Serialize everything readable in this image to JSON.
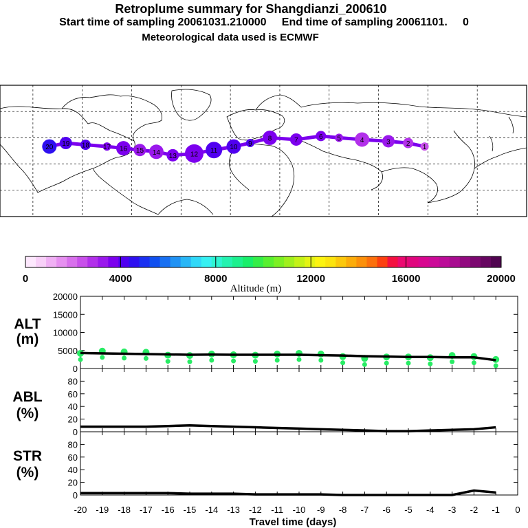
{
  "header": {
    "title": "Retroplume summary for Shangdianzi_200610",
    "subtitle": "Start time of sampling 20061031.210000     End time of sampling 20061101.     0",
    "met_line": "Meteorological data used is ECMWF"
  },
  "colorbar": {
    "title": "Altitude (m)",
    "ticks": [
      "0",
      "4000",
      "8000",
      "12000",
      "16000",
      "20000"
    ],
    "colors": [
      "#fde8fd",
      "#f8d0f8",
      "#f0b0f4",
      "#e690f0",
      "#d870ec",
      "#c850ea",
      "#b230ea",
      "#9a18ec",
      "#7c00ee",
      "#5000f0",
      "#2e10f0",
      "#1a30f2",
      "#1050f0",
      "#1870f2",
      "#2092f4",
      "#28b6f6",
      "#30d8f8",
      "#36f0f2",
      "#2ef4d2",
      "#24f2b0",
      "#1cf08e",
      "#18ee6a",
      "#34ee48",
      "#58f030",
      "#7cf024",
      "#a0f01e",
      "#c4f218",
      "#e4f414",
      "#fcf410",
      "#fce40e",
      "#fcc80c",
      "#fcac0a",
      "#fc900a",
      "#fc700c",
      "#fc4010",
      "#f41040",
      "#ec0870",
      "#e0067e",
      "#d80690",
      "#cc0a98",
      "#bc0c98",
      "#a80c90",
      "#920a80",
      "#7c0870",
      "#660660",
      "#500450"
    ]
  },
  "map": {
    "plume_color": "#7c00ee",
    "points": [
      {
        "label": "1",
        "lon": 118,
        "lat": 40,
        "alt": 2500
      },
      {
        "label": "2",
        "lon": 108,
        "lat": 42,
        "alt": 2800
      },
      {
        "label": "3",
        "lon": 96,
        "lat": 43,
        "alt": 3200
      },
      {
        "label": "4",
        "lon": 80,
        "lat": 44,
        "alt": 3000
      },
      {
        "label": "5",
        "lon": 66,
        "lat": 45,
        "alt": 3300
      },
      {
        "label": "6",
        "lon": 55,
        "lat": 46,
        "alt": 3500
      },
      {
        "label": "7",
        "lon": 40,
        "lat": 44,
        "alt": 3600
      },
      {
        "label": "8",
        "lon": 24,
        "lat": 45,
        "alt": 3800
      },
      {
        "label": "9",
        "lon": 12,
        "lat": 42,
        "alt": 4000
      },
      {
        "label": "10",
        "lon": 2,
        "lat": 40,
        "alt": 4200
      },
      {
        "label": "11",
        "lon": -10,
        "lat": 38,
        "alt": 4100
      },
      {
        "label": "12",
        "lon": -22,
        "lat": 36,
        "alt": 3900
      },
      {
        "label": "13",
        "lon": -35,
        "lat": 35,
        "alt": 3700
      },
      {
        "label": "14",
        "lon": -45,
        "lat": 37,
        "alt": 3400
      },
      {
        "label": "15",
        "lon": -55,
        "lat": 38,
        "alt": 3300
      },
      {
        "label": "16",
        "lon": -65,
        "lat": 39,
        "alt": 3500
      },
      {
        "label": "17",
        "lon": -75,
        "lat": 40,
        "alt": 3800
      },
      {
        "label": "18",
        "lon": -88,
        "lat": 41,
        "alt": 4000
      },
      {
        "label": "19",
        "lon": -100,
        "lat": 42,
        "alt": 4300
      },
      {
        "label": "20",
        "lon": -110,
        "lat": 40,
        "alt": 4500
      }
    ]
  },
  "chart_data": [
    {
      "type": "line",
      "panel": "ALT",
      "ylabel": [
        "ALT",
        "(m)"
      ],
      "ylim": [
        0,
        20000
      ],
      "yticks": [
        "0",
        "5000",
        "10000",
        "15000",
        "20000"
      ],
      "x": [
        -20,
        -19,
        -18,
        -17,
        -16,
        -15,
        -14,
        -13,
        -12,
        -11,
        -10,
        -9,
        -8,
        -7,
        -6,
        -5,
        -4,
        -3,
        -2,
        -1
      ],
      "values": [
        4300,
        4200,
        4100,
        4000,
        3900,
        3800,
        3850,
        3800,
        3800,
        3800,
        3800,
        3700,
        3600,
        3400,
        3300,
        3200,
        3200,
        3100,
        3100,
        2300
      ],
      "points": [
        4200,
        4800,
        4600,
        4500,
        3700,
        3600,
        4000,
        3800,
        3700,
        4000,
        4200,
        4000,
        3300,
        2800,
        3200,
        3200,
        3000,
        3600,
        3300,
        2500
      ],
      "point_color": "#28ec64"
    },
    {
      "type": "line",
      "panel": "ABL",
      "ylabel": [
        "ABL",
        "(%)"
      ],
      "ylim": [
        0,
        100
      ],
      "yticks": [
        "0",
        "20",
        "40",
        "60",
        "80"
      ],
      "x": [
        -20,
        -19,
        -18,
        -17,
        -16,
        -15,
        -14,
        -13,
        -12,
        -11,
        -10,
        -9,
        -8,
        -7,
        -6,
        -5,
        -4,
        -3,
        -2,
        -1
      ],
      "values": [
        8,
        8,
        8,
        8,
        9,
        10,
        9,
        8,
        7,
        6,
        5,
        4,
        3,
        2,
        1,
        1,
        2,
        3,
        4,
        7
      ]
    },
    {
      "type": "line",
      "panel": "STR",
      "ylabel": [
        "STR",
        "(%)"
      ],
      "ylim": [
        0,
        100
      ],
      "yticks": [
        "0",
        "20",
        "40",
        "60",
        "80"
      ],
      "x": [
        -20,
        -19,
        -18,
        -17,
        -16,
        -15,
        -14,
        -13,
        -12,
        -11,
        -10,
        -9,
        -8,
        -7,
        -6,
        -5,
        -4,
        -3,
        -2,
        -1
      ],
      "values": [
        3,
        3,
        3,
        3,
        3,
        2,
        2,
        2,
        1,
        1,
        1,
        1,
        0,
        0,
        0,
        0,
        0,
        0,
        7,
        4
      ]
    }
  ],
  "xaxis": {
    "label": "Travel time (days)",
    "ticks": [
      "-20",
      "-19",
      "-18",
      "-17",
      "-16",
      "-15",
      "-14",
      "-13",
      "-12",
      "-11",
      "-10",
      "-9",
      "-8",
      "-7",
      "-6",
      "-5",
      "-4",
      "-3",
      "-2",
      "-1",
      "0"
    ]
  }
}
